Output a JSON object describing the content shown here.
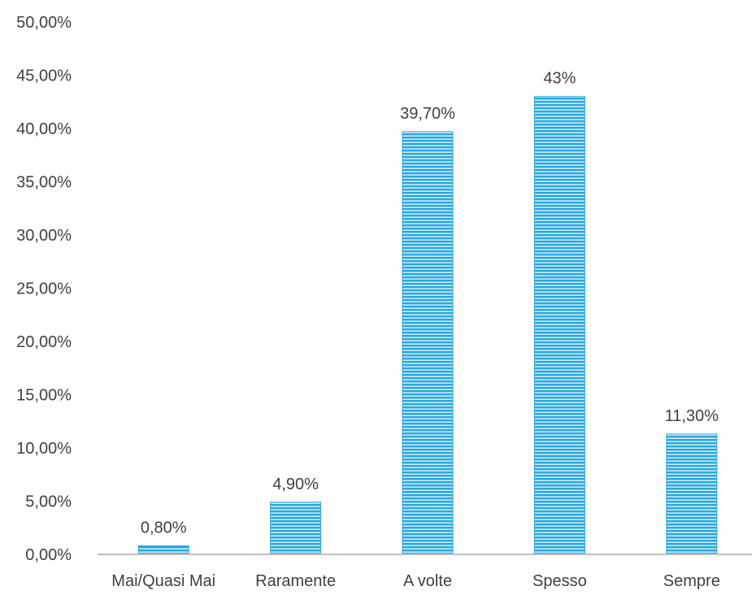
{
  "chart_data": {
    "type": "bar",
    "title": "",
    "xlabel": "",
    "ylabel": "",
    "categories": [
      "Mai/Quasi Mai",
      "Raramente",
      "A volte",
      "Spesso",
      "Sempre"
    ],
    "values": [
      0.8,
      4.9,
      39.7,
      43,
      11.3
    ],
    "data_labels": [
      "0,80%",
      "4,90%",
      "39,70%",
      "43%",
      "11,30%"
    ],
    "y_ticks": [
      0,
      5,
      10,
      15,
      20,
      25,
      30,
      35,
      40,
      45,
      50
    ],
    "y_tick_labels": [
      "0,00%",
      "5,00%",
      "10,00%",
      "15,00%",
      "20,00%",
      "25,00%",
      "30,00%",
      "35,00%",
      "40,00%",
      "45,00%",
      "50,00%"
    ],
    "ylim": [
      0,
      50
    ],
    "grid": false,
    "legend": "none",
    "bar_color": "#29a8df",
    "bar_stripe_color": "#ffffff",
    "axis_color": "#bfbfbf",
    "text_color": "#404040"
  }
}
